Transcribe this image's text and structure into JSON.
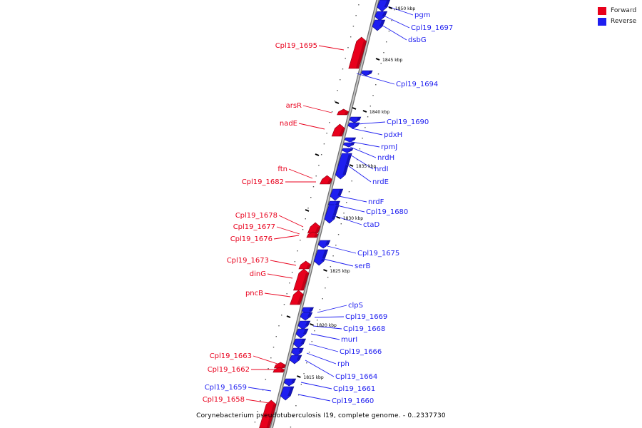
{
  "legend": [
    {
      "label": "Forward",
      "color": "#e8001c"
    },
    {
      "label": "Reverse",
      "color": "#1e1ef0"
    }
  ],
  "caption": "Corynebacterium pseudotuberculosis I19, complete genome. - 0..2337730",
  "colors": {
    "forward": "#e8001c",
    "reverse": "#1e1ef0",
    "backbone": "#9a9a9a"
  },
  "ticks": [
    "1850 kbp",
    "1845 kbp",
    "1840 kbp",
    "1835 kbp",
    "1830 kbp",
    "1825 kbp",
    "1820 kbp",
    "1815 kbp"
  ],
  "forward_labels": [
    "Cpl19_1695",
    "arsR",
    "nadE",
    "ftn",
    "Cpl19_1682",
    "Cpl19_1678",
    "Cpl19_1677",
    "Cpl19_1676",
    "Cpl19_1673",
    "dinG",
    "pncB",
    "Cpl19_1663",
    "Cpl19_1662",
    "Cpl19_1658"
  ],
  "reverse_labels": [
    "pgm",
    "Cpl19_1697",
    "dsbG",
    "Cpl19_1694",
    "Cpl19_1690",
    "pdxH",
    "rpmJ",
    "nrdH",
    "nrdI",
    "nrdE",
    "nrdF",
    "Cpl19_1680",
    "ctaD",
    "Cpl19_1675",
    "serB",
    "clpS",
    "Cpl19_1669",
    "Cpl19_1668",
    "murI",
    "Cpl19_1666",
    "rph",
    "Cpl19_1664",
    "Cpl19_1661",
    "Cpl19_1660",
    "Cpl19_1659"
  ]
}
